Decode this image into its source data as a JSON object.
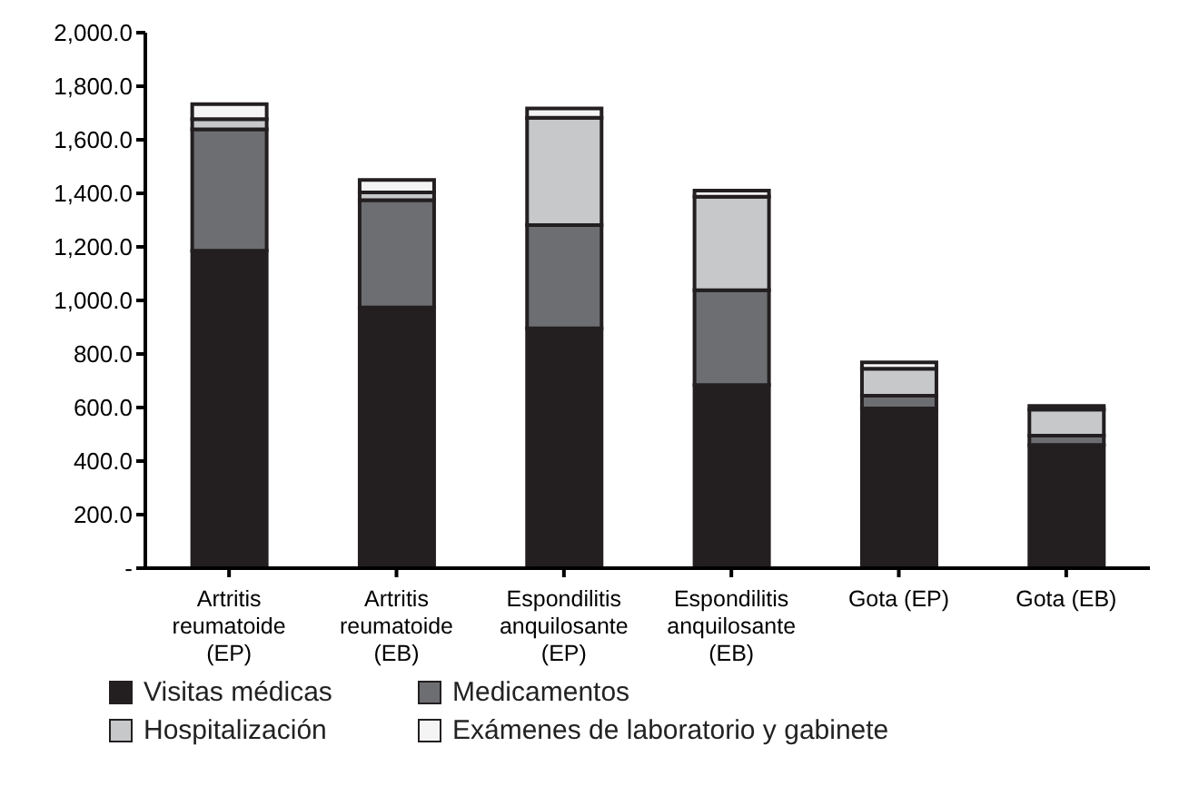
{
  "chart_data": {
    "type": "bar",
    "stacked": true,
    "categories": [
      "Artritis reumatoide (EP)",
      "Artritis reumatoide (EB)",
      "Espondilitis anquilosante (EP)",
      "Espondilitis anquilosante (EB)",
      "Gota (EP)",
      "Gota (EB)"
    ],
    "series": [
      {
        "name": "Visitas médicas",
        "color": "#231f20",
        "values": [
          1186,
          974,
          896,
          684,
          597,
          460
        ]
      },
      {
        "name": "Medicamentos",
        "color": "#6d6e71",
        "values": [
          453,
          401,
          385,
          354,
          47,
          35
        ]
      },
      {
        "name": "Hospitalización",
        "color": "#c7c8ca",
        "values": [
          38,
          28,
          401,
          349,
          101,
          97
        ]
      },
      {
        "name": "Exámenes de laboratorio y gabinete",
        "color": "#f4f4f4",
        "values": [
          56,
          47,
          35,
          23,
          24,
          14
        ]
      }
    ],
    "ylim": [
      0,
      2000
    ],
    "yticks": [
      {
        "value": 0,
        "label": "-"
      },
      {
        "value": 200,
        "label": "200.0"
      },
      {
        "value": 400,
        "label": "400.0"
      },
      {
        "value": 600,
        "label": "600.0"
      },
      {
        "value": 800,
        "label": "800.0"
      },
      {
        "value": 1000,
        "label": "1,000.0"
      },
      {
        "value": 1200,
        "label": "1,200.0"
      },
      {
        "value": 1400,
        "label": "1,400.0"
      },
      {
        "value": 1600,
        "label": "1,600.0"
      },
      {
        "value": 1800,
        "label": "1,800.0"
      },
      {
        "value": 2000,
        "label": "2,000.0"
      }
    ],
    "grid": false,
    "legend": "bottom"
  }
}
